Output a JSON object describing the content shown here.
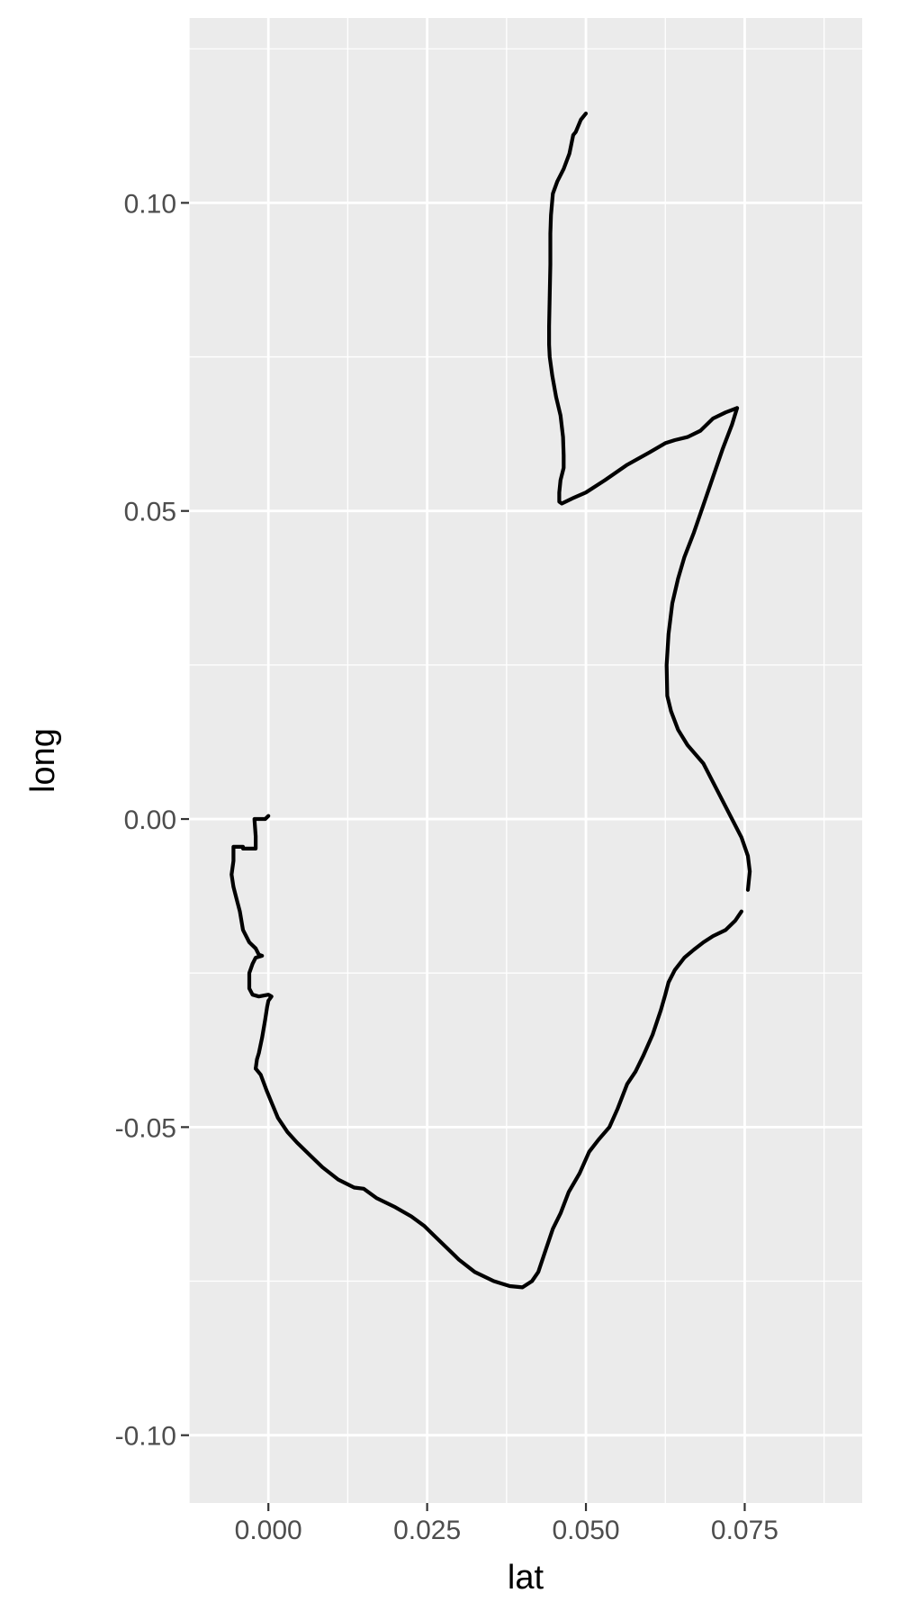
{
  "chart_data": {
    "type": "line",
    "title": "",
    "xlabel": "lat",
    "ylabel": "long",
    "xlim": [
      -0.0125,
      0.0935
    ],
    "ylim": [
      -0.111,
      0.13
    ],
    "x_ticks": [
      0.0,
      0.025,
      0.05,
      0.075
    ],
    "x_tick_labels": [
      "0.000",
      "0.025",
      "0.050",
      "0.075"
    ],
    "y_ticks": [
      -0.1,
      -0.05,
      0.0,
      0.05,
      0.1
    ],
    "y_tick_labels": [
      "-0.10",
      "-0.05",
      "0.00",
      "0.05",
      "0.10"
    ],
    "grid": true,
    "background": "#ebebeb",
    "grid_color": "#ffffff",
    "line_color": "#000000",
    "series": [
      {
        "x": [
          0.05,
          0.0492,
          0.0484,
          0.048,
          0.0474,
          0.0465,
          0.0455,
          0.0448,
          0.0445,
          0.0444,
          0.0444,
          0.0443,
          0.0442,
          0.0442,
          0.0443,
          0.0447,
          0.0453,
          0.046,
          0.0464,
          0.0465,
          0.0465,
          0.046,
          0.0458,
          0.0458,
          0.0462,
          0.0478,
          0.05,
          0.053,
          0.0565,
          0.06,
          0.0625,
          0.064,
          0.066,
          0.068,
          0.07,
          0.072,
          0.0738
        ],
        "y": [
          0.1145,
          0.1135,
          0.1115,
          0.111,
          0.108,
          0.1055,
          0.1035,
          0.1015,
          0.098,
          0.095,
          0.09,
          0.085,
          0.08,
          0.077,
          0.075,
          0.072,
          0.0685,
          0.0655,
          0.062,
          0.059,
          0.057,
          0.055,
          0.053,
          0.0515,
          0.0512,
          0.052,
          0.053,
          0.055,
          0.0575,
          0.0595,
          0.061,
          0.0615,
          0.062,
          0.063,
          0.065,
          0.066,
          0.0667
        ]
      },
      {
        "x": [
          0.0738,
          0.073,
          0.0715,
          0.07,
          0.0685,
          0.067,
          0.0655,
          0.0645,
          0.0636,
          0.063,
          0.0627,
          0.0628,
          0.0634,
          0.0645,
          0.066,
          0.0685,
          0.0705,
          0.0725,
          0.0745,
          0.0755,
          0.0758,
          0.0755
        ],
        "y": [
          0.0667,
          0.064,
          0.06,
          0.0555,
          0.051,
          0.0465,
          0.0425,
          0.039,
          0.035,
          0.03,
          0.025,
          0.02,
          0.0175,
          0.0145,
          0.012,
          0.009,
          0.005,
          0.001,
          -0.003,
          -0.006,
          -0.0085,
          -0.0115
        ]
      },
      {
        "x": [
          0.0745,
          0.0735,
          0.072,
          0.07,
          0.0685,
          0.067,
          0.0655,
          0.064,
          0.063,
          0.0625,
          0.0618,
          0.0605,
          0.059,
          0.0578,
          0.0565,
          0.055,
          0.0537,
          0.052,
          0.0505,
          0.049,
          0.0473,
          0.046,
          0.0448,
          0.0438,
          0.0425,
          0.0415,
          0.04,
          0.038,
          0.0355,
          0.0325,
          0.03,
          0.028,
          0.026,
          0.0245,
          0.0225,
          0.02,
          0.017,
          0.015,
          0.0135,
          0.011,
          0.0085,
          0.0065,
          0.0045,
          0.003,
          0.0015,
          0.0005,
          -0.0003,
          -0.0012,
          -0.002
        ],
        "y": [
          -0.015,
          -0.0165,
          -0.018,
          -0.019,
          -0.02,
          -0.0212,
          -0.0225,
          -0.0245,
          -0.0265,
          -0.0285,
          -0.031,
          -0.035,
          -0.0385,
          -0.041,
          -0.043,
          -0.047,
          -0.05,
          -0.052,
          -0.054,
          -0.0575,
          -0.0605,
          -0.064,
          -0.0665,
          -0.0695,
          -0.0735,
          -0.075,
          -0.076,
          -0.0758,
          -0.075,
          -0.0735,
          -0.0715,
          -0.0695,
          -0.0675,
          -0.066,
          -0.0645,
          -0.063,
          -0.0615,
          -0.06,
          -0.0598,
          -0.0585,
          -0.0565,
          -0.0545,
          -0.0525,
          -0.0508,
          -0.0485,
          -0.046,
          -0.044,
          -0.0415,
          -0.0405
        ]
      },
      {
        "x": [
          -0.002,
          -0.0018,
          -0.0015,
          -0.001,
          -0.0005,
          -0.0002,
          0.0,
          0.0005,
          0.0005,
          0.0,
          -0.0015,
          -0.0025,
          -0.003,
          -0.003,
          -0.0025,
          -0.002,
          -0.001,
          -0.0015,
          -0.002,
          -0.003,
          -0.004,
          -0.0045,
          -0.005,
          -0.0055,
          -0.0058,
          -0.0055,
          -0.0055,
          -0.004,
          -0.004,
          -0.002,
          -0.002,
          -0.0022,
          -0.0005,
          0.0
        ],
        "y": [
          -0.0405,
          -0.039,
          -0.038,
          -0.0355,
          -0.0325,
          -0.0305,
          -0.0295,
          -0.0288,
          -0.0288,
          -0.0285,
          -0.0288,
          -0.0285,
          -0.0275,
          -0.025,
          -0.0235,
          -0.0225,
          -0.0222,
          -0.022,
          -0.021,
          -0.02,
          -0.018,
          -0.015,
          -0.013,
          -0.011,
          -0.009,
          -0.0068,
          -0.0045,
          -0.0045,
          -0.0048,
          -0.0048,
          -0.0028,
          0.0,
          0.0,
          0.0005
        ]
      }
    ]
  }
}
